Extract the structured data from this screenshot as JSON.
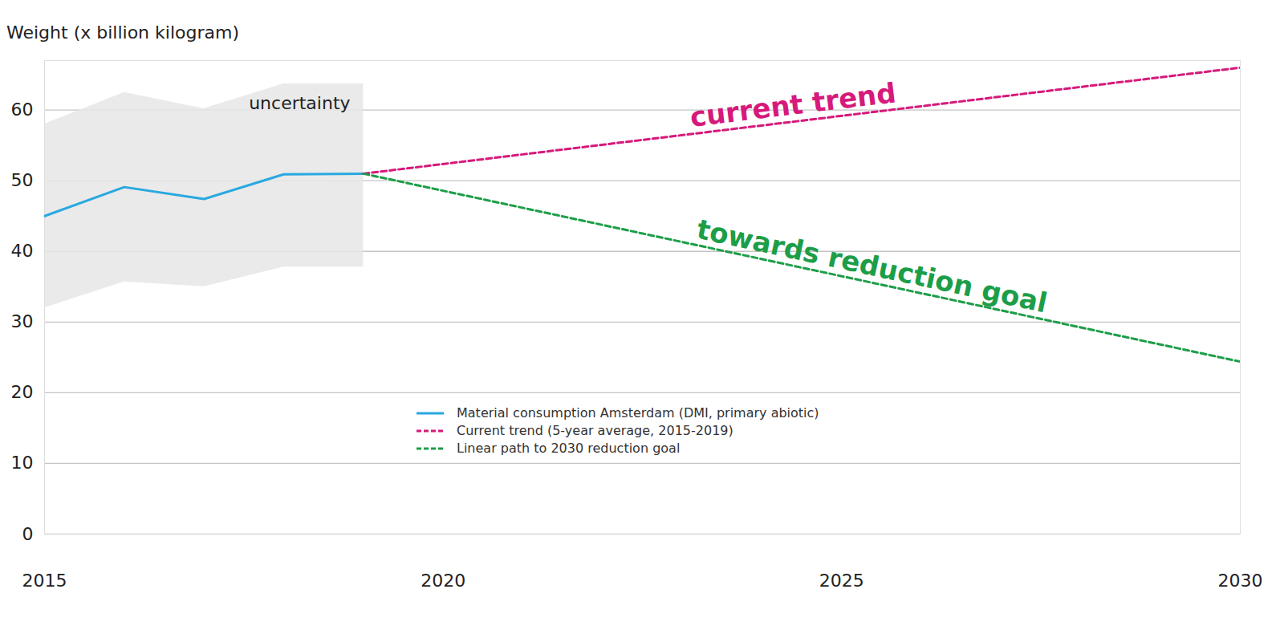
{
  "chart_data": {
    "type": "line",
    "y_label": "Weight (x billion kilogram)",
    "x": [
      2015,
      2016,
      2017,
      2018,
      2019,
      2030
    ],
    "series": [
      {
        "name": "Material consumption Amsterdam (DMI, primary abiotic)",
        "color": "#29a8e0",
        "line_style": "solid",
        "values": [
          45,
          49.1,
          47.4,
          50.9,
          51,
          null
        ]
      },
      {
        "name": "Current trend (5-year average, 2015-2019)",
        "color": "#d6197b",
        "line_style": "dashed",
        "annotation": "current trend",
        "values": [
          null,
          null,
          null,
          null,
          51,
          66
        ]
      },
      {
        "name": "Linear path to 2030 reduction goal",
        "color": "#1c9e48",
        "line_style": "dashed",
        "annotation": "towards reduction goal",
        "values": [
          null,
          null,
          null,
          null,
          51,
          24.4
        ]
      }
    ],
    "uncertainty": {
      "label": "uncertainty",
      "color": "#e6e6e6",
      "lower": [
        32,
        35.7,
        35,
        37.8,
        37.8,
        null
      ],
      "upper": [
        58,
        62.5,
        60.2,
        63.7,
        63.7,
        null
      ]
    },
    "xlim": [
      2015,
      2030
    ],
    "xticks": [
      2015,
      2020,
      2025,
      2030
    ],
    "ylim": [
      0,
      67
    ],
    "yticks": [
      0,
      10,
      20,
      30,
      40,
      50,
      60
    ],
    "grid": true,
    "legend": "bottom"
  }
}
